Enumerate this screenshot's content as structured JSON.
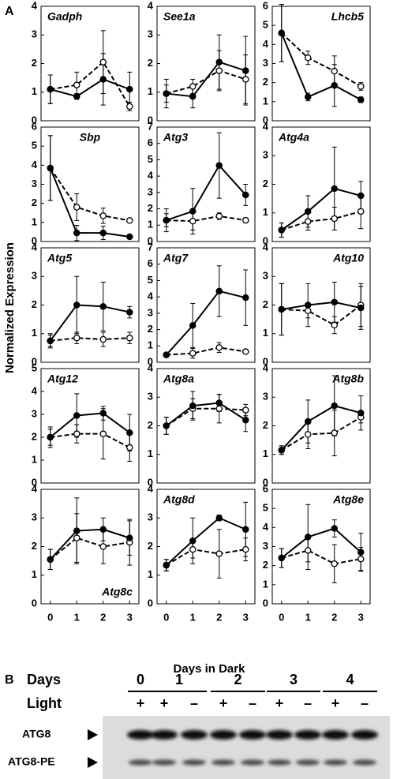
{
  "panel_labels": [
    "A",
    "B"
  ],
  "y_axis_label": "Normalized Expression",
  "x_axis_label": "Days in Dark",
  "chart_data": [
    {
      "type": "line",
      "title": "Gadph",
      "title_position": "top-left",
      "x": [
        0,
        1,
        2,
        3
      ],
      "xlim": [
        -0.35,
        3.35
      ],
      "ylim": [
        0,
        4
      ],
      "yticks": [
        0,
        1,
        2,
        3,
        4
      ],
      "series": [
        {
          "color": "#000000",
          "marker_fill": "#ffffff",
          "dashed": true,
          "values": [
            1.1,
            1.25,
            2.05,
            0.5
          ],
          "errors": [
            0.5,
            0.45,
            1.1,
            0.15
          ]
        },
        {
          "color": "#000000",
          "marker_fill": "#000000",
          "dashed": false,
          "values": [
            1.1,
            0.85,
            1.45,
            1.1
          ],
          "errors": [
            0.5,
            0.1,
            0.9,
            0.6
          ]
        }
      ]
    },
    {
      "type": "line",
      "title": "See1a",
      "title_position": "top-left",
      "x": [
        0,
        1,
        2,
        3
      ],
      "xlim": [
        -0.35,
        3.35
      ],
      "ylim": [
        0,
        4
      ],
      "yticks": [
        0,
        1,
        2,
        3,
        4
      ],
      "series": [
        {
          "color": "#000000",
          "marker_fill": "#ffffff",
          "dashed": true,
          "values": [
            0.95,
            1.2,
            1.75,
            1.45
          ],
          "errors": [
            0.3,
            0.25,
            0.7,
            0.85
          ]
        },
        {
          "color": "#000000",
          "marker_fill": "#000000",
          "dashed": false,
          "values": [
            0.95,
            0.85,
            2.05,
            1.75
          ],
          "errors": [
            0.5,
            0.4,
            0.95,
            1.2
          ]
        }
      ]
    },
    {
      "type": "line",
      "title": "Lhcb5",
      "title_position": "top-right",
      "x": [
        0,
        1,
        2,
        3
      ],
      "xlim": [
        -0.35,
        3.35
      ],
      "ylim": [
        0,
        6
      ],
      "yticks": [
        0,
        1,
        2,
        3,
        4,
        5,
        6
      ],
      "series": [
        {
          "color": "#000000",
          "marker_fill": "#ffffff",
          "dashed": true,
          "values": [
            4.6,
            3.3,
            2.6,
            1.8
          ],
          "errors": [
            1.5,
            0.35,
            0.8,
            0.2
          ]
        },
        {
          "color": "#000000",
          "marker_fill": "#000000",
          "dashed": false,
          "values": [
            4.6,
            1.25,
            1.85,
            1.1
          ],
          "errors": [
            1.5,
            0.2,
            1.1,
            0.15
          ]
        }
      ]
    },
    {
      "type": "line",
      "title": "Sbp",
      "title_position": "top-center",
      "x": [
        0,
        1,
        2,
        3
      ],
      "xlim": [
        -0.35,
        3.35
      ],
      "ylim": [
        0,
        6
      ],
      "yticks": [
        0,
        1,
        2,
        3,
        4,
        5,
        6
      ],
      "series": [
        {
          "color": "#000000",
          "marker_fill": "#ffffff",
          "dashed": true,
          "values": [
            3.85,
            1.8,
            1.35,
            1.1
          ],
          "errors": [
            1.7,
            0.7,
            0.4,
            0.1
          ]
        },
        {
          "color": "#000000",
          "marker_fill": "#000000",
          "dashed": false,
          "values": [
            3.85,
            0.45,
            0.45,
            0.25
          ],
          "errors": [
            1.7,
            0.4,
            0.35,
            0.1
          ]
        }
      ]
    },
    {
      "type": "line",
      "title": "Atg3",
      "title_position": "top-left",
      "x": [
        0,
        1,
        2,
        3
      ],
      "xlim": [
        -0.35,
        3.35
      ],
      "ylim": [
        0,
        7
      ],
      "yticks": [
        0,
        1,
        2,
        3,
        4,
        5,
        6,
        7
      ],
      "series": [
        {
          "color": "#000000",
          "marker_fill": "#ffffff",
          "dashed": true,
          "values": [
            1.3,
            1.25,
            1.55,
            1.3
          ],
          "errors": [
            0.4,
            0.55,
            0.2,
            0.15
          ]
        },
        {
          "color": "#000000",
          "marker_fill": "#000000",
          "dashed": false,
          "values": [
            1.3,
            1.85,
            4.65,
            2.85
          ],
          "errors": [
            0.7,
            1.4,
            2.0,
            0.65
          ]
        }
      ]
    },
    {
      "type": "line",
      "title": "Atg4a",
      "title_position": "top-left",
      "x": [
        0,
        1,
        2,
        3
      ],
      "xlim": [
        -0.35,
        3.35
      ],
      "ylim": [
        0,
        4
      ],
      "yticks": [
        0,
        1,
        2,
        3,
        4
      ],
      "series": [
        {
          "color": "#000000",
          "marker_fill": "#ffffff",
          "dashed": true,
          "values": [
            0.4,
            0.7,
            0.8,
            1.05
          ],
          "errors": [
            0.25,
            0.3,
            0.4,
            0.6
          ]
        },
        {
          "color": "#000000",
          "marker_fill": "#000000",
          "dashed": false,
          "values": [
            0.4,
            1.05,
            1.85,
            1.6
          ],
          "errors": [
            0.25,
            0.55,
            1.45,
            0.5
          ]
        }
      ]
    },
    {
      "type": "line",
      "title": "Atg5",
      "title_position": "top-left",
      "x": [
        0,
        1,
        2,
        3
      ],
      "xlim": [
        -0.35,
        3.35
      ],
      "ylim": [
        0,
        4
      ],
      "yticks": [
        0,
        1,
        2,
        3,
        4
      ],
      "series": [
        {
          "color": "#000000",
          "marker_fill": "#ffffff",
          "dashed": true,
          "values": [
            0.75,
            0.85,
            0.8,
            0.85
          ],
          "errors": [
            0.2,
            0.2,
            0.25,
            0.2
          ]
        },
        {
          "color": "#000000",
          "marker_fill": "#000000",
          "dashed": false,
          "values": [
            0.75,
            2.0,
            1.95,
            1.75
          ],
          "errors": [
            0.25,
            1.0,
            0.85,
            0.2
          ]
        }
      ]
    },
    {
      "type": "line",
      "title": "Atg7",
      "title_position": "top-left",
      "x": [
        0,
        1,
        2,
        3
      ],
      "xlim": [
        -0.35,
        3.35
      ],
      "ylim": [
        0,
        7
      ],
      "yticks": [
        0,
        1,
        2,
        3,
        4,
        5,
        6,
        7
      ],
      "series": [
        {
          "color": "#000000",
          "marker_fill": "#ffffff",
          "dashed": true,
          "values": [
            0.45,
            0.55,
            0.9,
            0.65
          ],
          "errors": [
            0.1,
            0.3,
            0.3,
            0.1
          ]
        },
        {
          "color": "#000000",
          "marker_fill": "#000000",
          "dashed": false,
          "values": [
            0.45,
            2.25,
            4.35,
            3.95
          ],
          "errors": [
            0.1,
            1.35,
            1.55,
            1.7
          ]
        }
      ]
    },
    {
      "type": "line",
      "title": "Atg10",
      "title_position": "top-right",
      "x": [
        0,
        1,
        2,
        3
      ],
      "xlim": [
        -0.35,
        3.35
      ],
      "ylim": [
        0,
        4
      ],
      "yticks": [
        0,
        1,
        2,
        3,
        4
      ],
      "series": [
        {
          "color": "#000000",
          "marker_fill": "#ffffff",
          "dashed": true,
          "values": [
            1.85,
            1.8,
            1.3,
            2.0
          ],
          "errors": [
            0.9,
            0.25,
            0.3,
            0.75
          ]
        },
        {
          "color": "#000000",
          "marker_fill": "#000000",
          "dashed": false,
          "values": [
            1.85,
            2.0,
            2.1,
            1.9
          ],
          "errors": [
            0.9,
            0.75,
            0.7,
            0.75
          ]
        }
      ]
    },
    {
      "type": "line",
      "title": "Atg12",
      "title_position": "top-left",
      "x": [
        0,
        1,
        2,
        3
      ],
      "xlim": [
        -0.35,
        3.35
      ],
      "ylim": [
        0,
        5
      ],
      "yticks": [
        0,
        1,
        2,
        3,
        4,
        5
      ],
      "series": [
        {
          "color": "#000000",
          "marker_fill": "#ffffff",
          "dashed": true,
          "values": [
            2.0,
            2.15,
            2.15,
            1.55
          ],
          "errors": [
            0.35,
            0.4,
            1.1,
            0.6
          ]
        },
        {
          "color": "#000000",
          "marker_fill": "#000000",
          "dashed": false,
          "values": [
            2.0,
            2.95,
            3.05,
            2.2
          ],
          "errors": [
            0.45,
            0.95,
            0.3,
            0.8
          ]
        }
      ]
    },
    {
      "type": "line",
      "title": "Atg8a",
      "title_position": "top-left",
      "x": [
        0,
        1,
        2,
        3
      ],
      "xlim": [
        -0.35,
        3.35
      ],
      "ylim": [
        0,
        4
      ],
      "yticks": [
        0,
        1,
        2,
        3,
        4
      ],
      "series": [
        {
          "color": "#000000",
          "marker_fill": "#ffffff",
          "dashed": true,
          "values": [
            2.0,
            2.6,
            2.6,
            2.55
          ],
          "errors": [
            0.3,
            0.35,
            0.5,
            0.2
          ]
        },
        {
          "color": "#000000",
          "marker_fill": "#000000",
          "dashed": false,
          "values": [
            2.0,
            2.7,
            2.8,
            2.2
          ],
          "errors": [
            0.3,
            0.5,
            0.3,
            0.4
          ]
        }
      ]
    },
    {
      "type": "line",
      "title": "Atg8b",
      "title_position": "top-right",
      "x": [
        0,
        1,
        2,
        3
      ],
      "xlim": [
        -0.35,
        3.35
      ],
      "ylim": [
        0,
        4
      ],
      "yticks": [
        0,
        1,
        2,
        3,
        4
      ],
      "series": [
        {
          "color": "#000000",
          "marker_fill": "#ffffff",
          "dashed": true,
          "values": [
            1.15,
            1.7,
            1.75,
            2.3
          ],
          "errors": [
            0.15,
            0.5,
            0.8,
            0.2
          ]
        },
        {
          "color": "#000000",
          "marker_fill": "#000000",
          "dashed": false,
          "values": [
            1.15,
            2.15,
            2.7,
            2.45
          ],
          "errors": [
            0.15,
            0.75,
            1.05,
            0.6
          ]
        }
      ]
    },
    {
      "type": "line",
      "title": "Atg8c",
      "title_position": "bottom-right",
      "x": [
        0,
        1,
        2,
        3
      ],
      "xlim": [
        -0.35,
        3.35
      ],
      "xticks": [
        0,
        1,
        2,
        3
      ],
      "ylim": [
        0,
        4
      ],
      "yticks": [
        0,
        1,
        2,
        3,
        4
      ],
      "series": [
        {
          "color": "#000000",
          "marker_fill": "#ffffff",
          "dashed": true,
          "values": [
            1.55,
            2.3,
            2.0,
            2.15
          ],
          "errors": [
            0.35,
            0.85,
            0.6,
            0.8
          ]
        },
        {
          "color": "#000000",
          "marker_fill": "#000000",
          "dashed": false,
          "values": [
            1.55,
            2.55,
            2.6,
            2.3
          ],
          "errors": [
            0.35,
            1.15,
            0.4,
            0.6
          ]
        }
      ]
    },
    {
      "type": "line",
      "title": "Atg8d",
      "title_position": "top-left",
      "x": [
        0,
        1,
        2,
        3
      ],
      "xlim": [
        -0.35,
        3.35
      ],
      "xticks": [
        0,
        1,
        2,
        3
      ],
      "ylim": [
        0,
        4
      ],
      "yticks": [
        0,
        1,
        2,
        3,
        4
      ],
      "series": [
        {
          "color": "#000000",
          "marker_fill": "#ffffff",
          "dashed": true,
          "values": [
            1.35,
            1.9,
            1.75,
            1.9
          ],
          "errors": [
            0.2,
            0.3,
            0.85,
            0.4
          ]
        },
        {
          "color": "#000000",
          "marker_fill": "#000000",
          "dashed": false,
          "values": [
            1.35,
            2.2,
            3.0,
            2.6
          ],
          "errors": [
            0.2,
            0.8,
            0.1,
            0.95
          ]
        }
      ]
    },
    {
      "type": "line",
      "title": "Atg8e",
      "title_position": "top-right",
      "x": [
        0,
        1,
        2,
        3
      ],
      "xlim": [
        -0.35,
        3.35
      ],
      "xticks": [
        0,
        1,
        2,
        3
      ],
      "ylim": [
        0,
        6
      ],
      "yticks": [
        0,
        1,
        2,
        3,
        4,
        5,
        6
      ],
      "series": [
        {
          "color": "#000000",
          "marker_fill": "#ffffff",
          "dashed": true,
          "values": [
            2.4,
            2.8,
            2.1,
            2.35
          ],
          "errors": [
            0.5,
            0.6,
            1.0,
            0.6
          ]
        },
        {
          "color": "#000000",
          "marker_fill": "#000000",
          "dashed": false,
          "values": [
            2.4,
            3.5,
            3.95,
            2.7
          ],
          "errors": [
            0.5,
            1.7,
            0.45,
            1.0
          ]
        }
      ]
    }
  ],
  "blot": {
    "days_label": "Days",
    "days": [
      "0",
      "1",
      "2",
      "3",
      "4"
    ],
    "light_label": "Light",
    "light": [
      "+",
      "+",
      "–",
      "+",
      "–",
      "+",
      "–",
      "+",
      "–"
    ],
    "bands": [
      "ATG8",
      "ATG8-PE"
    ]
  }
}
